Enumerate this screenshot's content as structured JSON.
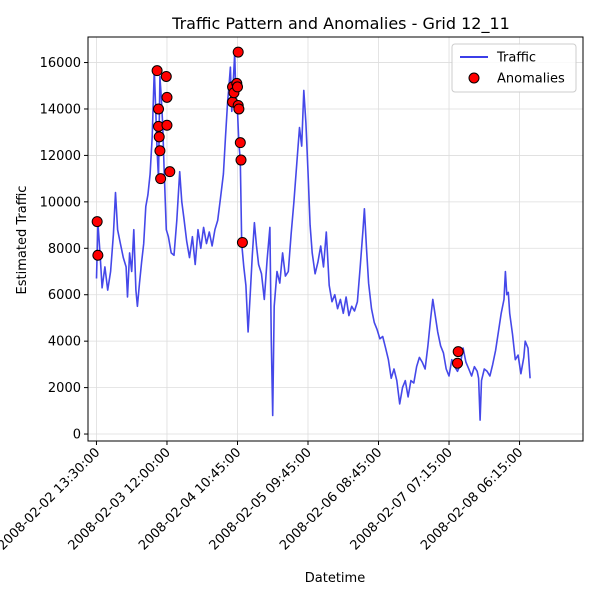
{
  "chart_data": {
    "type": "line",
    "title": "Traffic Pattern and Anomalies - Grid 12_11",
    "xlabel": "Datetime",
    "ylabel": "Estimated Traffic",
    "x_tick_labels": [
      "2008-02-02 13:30:00",
      "2008-02-03 12:00:00",
      "2008-02-04 10:45:00",
      "2008-02-05 09:45:00",
      "2008-02-06 08:45:00",
      "2008-02-07 07:15:00",
      "2008-02-08 06:15:00"
    ],
    "y_ticks": [
      0,
      2000,
      4000,
      6000,
      8000,
      10000,
      12000,
      14000,
      16000
    ],
    "xlim": [
      -0.12,
      6.9
    ],
    "ylim": [
      -300,
      17100
    ],
    "grid": true,
    "legend_position": "top-right",
    "series": [
      {
        "name": "Traffic",
        "color": "#3b3ee8",
        "points": [
          [
            0.0,
            6700
          ],
          [
            0.02,
            9100
          ],
          [
            0.05,
            7800
          ],
          [
            0.08,
            6300
          ],
          [
            0.12,
            7200
          ],
          [
            0.16,
            6200
          ],
          [
            0.2,
            7000
          ],
          [
            0.24,
            8600
          ],
          [
            0.27,
            10400
          ],
          [
            0.3,
            8800
          ],
          [
            0.34,
            8200
          ],
          [
            0.38,
            7600
          ],
          [
            0.42,
            7200
          ],
          [
            0.44,
            5900
          ],
          [
            0.47,
            7800
          ],
          [
            0.5,
            7000
          ],
          [
            0.53,
            8800
          ],
          [
            0.56,
            6200
          ],
          [
            0.58,
            5500
          ],
          [
            0.61,
            6500
          ],
          [
            0.64,
            7400
          ],
          [
            0.67,
            8200
          ],
          [
            0.7,
            9800
          ],
          [
            0.73,
            10300
          ],
          [
            0.76,
            11200
          ],
          [
            0.79,
            12800
          ],
          [
            0.82,
            15700
          ],
          [
            0.84,
            14000
          ],
          [
            0.86,
            12200
          ],
          [
            0.88,
            11000
          ],
          [
            0.9,
            15400
          ],
          [
            0.92,
            14500
          ],
          [
            0.94,
            13300
          ],
          [
            0.96,
            11300
          ],
          [
            0.99,
            8800
          ],
          [
            1.02,
            8500
          ],
          [
            1.06,
            7800
          ],
          [
            1.1,
            7700
          ],
          [
            1.14,
            9200
          ],
          [
            1.18,
            11300
          ],
          [
            1.21,
            10000
          ],
          [
            1.24,
            9300
          ],
          [
            1.28,
            8300
          ],
          [
            1.32,
            7600
          ],
          [
            1.36,
            8500
          ],
          [
            1.4,
            7300
          ],
          [
            1.44,
            8800
          ],
          [
            1.48,
            8000
          ],
          [
            1.52,
            8900
          ],
          [
            1.56,
            8200
          ],
          [
            1.6,
            8700
          ],
          [
            1.64,
            8100
          ],
          [
            1.68,
            8800
          ],
          [
            1.72,
            9200
          ],
          [
            1.76,
            10200
          ],
          [
            1.8,
            11200
          ],
          [
            1.83,
            12800
          ],
          [
            1.86,
            14300
          ],
          [
            1.88,
            15000
          ],
          [
            1.9,
            15800
          ],
          [
            1.92,
            13900
          ],
          [
            1.94,
            15200
          ],
          [
            1.96,
            16400
          ],
          [
            1.98,
            14200
          ],
          [
            2.0,
            13900
          ],
          [
            2.02,
            12500
          ],
          [
            2.04,
            11800
          ],
          [
            2.06,
            8200
          ],
          [
            2.09,
            7200
          ],
          [
            2.12,
            6400
          ],
          [
            2.15,
            4400
          ],
          [
            2.18,
            6000
          ],
          [
            2.21,
            7700
          ],
          [
            2.24,
            9100
          ],
          [
            2.27,
            8100
          ],
          [
            2.3,
            7300
          ],
          [
            2.34,
            6900
          ],
          [
            2.38,
            5800
          ],
          [
            2.42,
            7500
          ],
          [
            2.46,
            8900
          ],
          [
            2.48,
            4000
          ],
          [
            2.5,
            800
          ],
          [
            2.52,
            5500
          ],
          [
            2.56,
            7000
          ],
          [
            2.6,
            6500
          ],
          [
            2.64,
            7800
          ],
          [
            2.68,
            6800
          ],
          [
            2.72,
            7000
          ],
          [
            2.76,
            8600
          ],
          [
            2.8,
            10000
          ],
          [
            2.84,
            11600
          ],
          [
            2.88,
            13200
          ],
          [
            2.91,
            12400
          ],
          [
            2.94,
            14800
          ],
          [
            2.97,
            13400
          ],
          [
            3.0,
            11300
          ],
          [
            3.03,
            9000
          ],
          [
            3.06,
            7800
          ],
          [
            3.1,
            6900
          ],
          [
            3.14,
            7400
          ],
          [
            3.18,
            8100
          ],
          [
            3.22,
            7200
          ],
          [
            3.26,
            8700
          ],
          [
            3.3,
            6400
          ],
          [
            3.34,
            5700
          ],
          [
            3.38,
            6000
          ],
          [
            3.42,
            5400
          ],
          [
            3.46,
            5800
          ],
          [
            3.5,
            5200
          ],
          [
            3.54,
            5900
          ],
          [
            3.58,
            5100
          ],
          [
            3.62,
            5500
          ],
          [
            3.66,
            5300
          ],
          [
            3.7,
            5700
          ],
          [
            3.74,
            7200
          ],
          [
            3.78,
            8800
          ],
          [
            3.8,
            9700
          ],
          [
            3.83,
            8000
          ],
          [
            3.86,
            6500
          ],
          [
            3.9,
            5400
          ],
          [
            3.94,
            4800
          ],
          [
            3.98,
            4500
          ],
          [
            4.02,
            4100
          ],
          [
            4.06,
            4200
          ],
          [
            4.1,
            3700
          ],
          [
            4.14,
            3200
          ],
          [
            4.18,
            2400
          ],
          [
            4.22,
            2800
          ],
          [
            4.26,
            2300
          ],
          [
            4.3,
            1300
          ],
          [
            4.34,
            2000
          ],
          [
            4.38,
            2300
          ],
          [
            4.42,
            1600
          ],
          [
            4.46,
            2300
          ],
          [
            4.5,
            2200
          ],
          [
            4.54,
            2900
          ],
          [
            4.58,
            3300
          ],
          [
            4.62,
            3100
          ],
          [
            4.66,
            2800
          ],
          [
            4.7,
            3800
          ],
          [
            4.74,
            5000
          ],
          [
            4.77,
            5800
          ],
          [
            4.8,
            5200
          ],
          [
            4.84,
            4400
          ],
          [
            4.88,
            3800
          ],
          [
            4.92,
            3500
          ],
          [
            4.96,
            2800
          ],
          [
            5.0,
            2500
          ],
          [
            5.04,
            3200
          ],
          [
            5.08,
            2900
          ],
          [
            5.12,
            2700
          ],
          [
            5.16,
            3000
          ],
          [
            5.2,
            3700
          ],
          [
            5.24,
            3100
          ],
          [
            5.28,
            2800
          ],
          [
            5.32,
            2500
          ],
          [
            5.36,
            2900
          ],
          [
            5.4,
            2700
          ],
          [
            5.42,
            2400
          ],
          [
            5.44,
            600
          ],
          [
            5.46,
            2300
          ],
          [
            5.5,
            2800
          ],
          [
            5.54,
            2700
          ],
          [
            5.58,
            2500
          ],
          [
            5.62,
            3000
          ],
          [
            5.66,
            3600
          ],
          [
            5.7,
            4400
          ],
          [
            5.74,
            5200
          ],
          [
            5.78,
            5800
          ],
          [
            5.8,
            7000
          ],
          [
            5.82,
            6000
          ],
          [
            5.84,
            6100
          ],
          [
            5.86,
            5200
          ],
          [
            5.9,
            4300
          ],
          [
            5.94,
            3200
          ],
          [
            5.98,
            3400
          ],
          [
            6.02,
            2600
          ],
          [
            6.06,
            3300
          ],
          [
            6.08,
            4000
          ],
          [
            6.12,
            3700
          ],
          [
            6.15,
            2400
          ]
        ]
      },
      {
        "name": "Anomalies",
        "color": "#ff0000",
        "edge_color": "#000000",
        "points": [
          [
            0.01,
            9150
          ],
          [
            0.02,
            7700
          ],
          [
            0.86,
            15650
          ],
          [
            0.88,
            14000
          ],
          [
            0.88,
            13250
          ],
          [
            0.89,
            12800
          ],
          [
            0.9,
            12200
          ],
          [
            0.91,
            11000
          ],
          [
            0.99,
            15400
          ],
          [
            1.0,
            14500
          ],
          [
            1.0,
            13300
          ],
          [
            1.04,
            11300
          ],
          [
            1.93,
            14950
          ],
          [
            1.93,
            14300
          ],
          [
            1.95,
            14700
          ],
          [
            1.99,
            15100
          ],
          [
            2.0,
            14950
          ],
          [
            2.01,
            16450
          ],
          [
            2.01,
            14150
          ],
          [
            2.02,
            14000
          ],
          [
            2.04,
            12550
          ],
          [
            2.05,
            11800
          ],
          [
            2.07,
            8250
          ],
          [
            5.12,
            3050
          ],
          [
            5.13,
            3550
          ]
        ]
      }
    ]
  }
}
